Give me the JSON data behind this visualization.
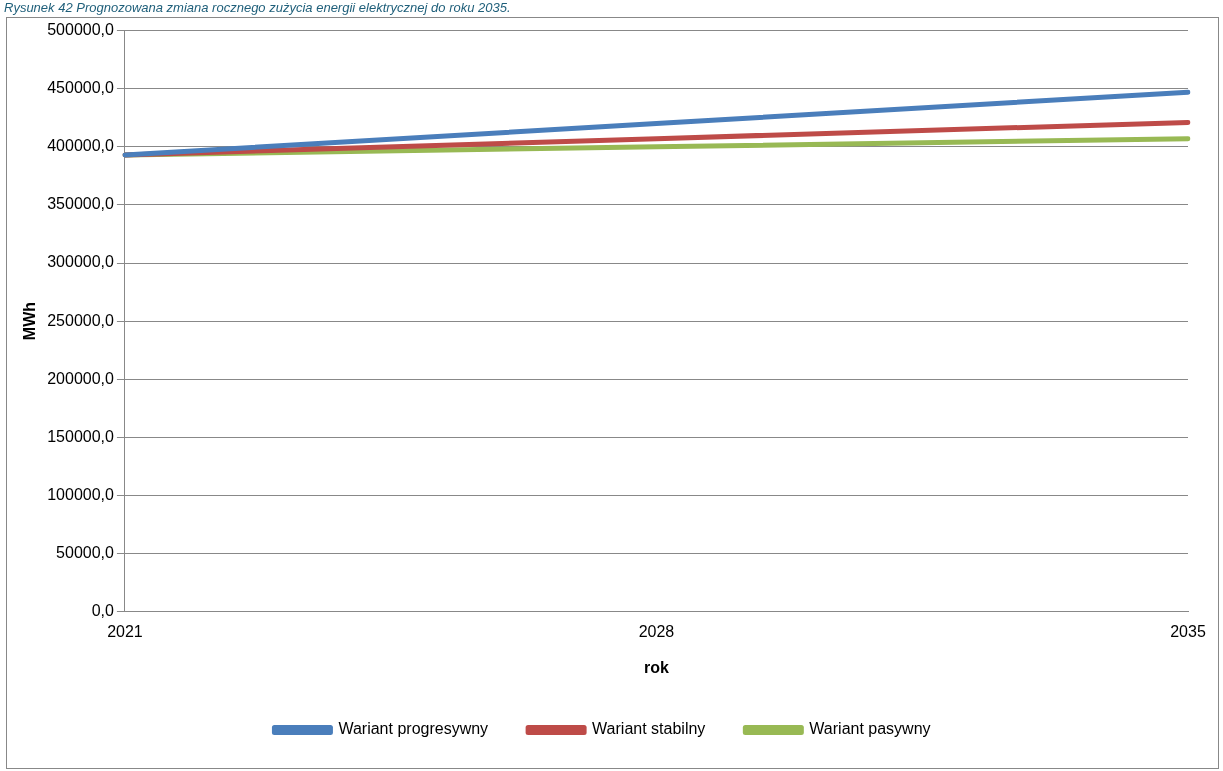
{
  "chart_data": {
    "type": "line",
    "title": "Rysunek 42 Prognozowana zmiana rocznego zużycia energii elektrycznej do roku 2035.",
    "xlabel": "rok",
    "ylabel": "MWh",
    "categories": [
      "2021",
      "2028",
      "2035"
    ],
    "series": [
      {
        "name": "Wariant progresywny",
        "color": "#4a7ebb",
        "values": [
          393000,
          420000,
          447000
        ]
      },
      {
        "name": "Wariant stabilny",
        "color": "#be4b48",
        "values": [
          393000,
          407000,
          421000
        ]
      },
      {
        "name": "Wariant pasywny",
        "color": "#98b954",
        "values": [
          393000,
          400000,
          407000
        ]
      }
    ],
    "ylim": [
      0,
      500000
    ],
    "yticks": [
      {
        "value": 0,
        "label": "0,0"
      },
      {
        "value": 50000,
        "label": "50000,0"
      },
      {
        "value": 100000,
        "label": "100000,0"
      },
      {
        "value": 150000,
        "label": "150000,0"
      },
      {
        "value": 200000,
        "label": "200000,0"
      },
      {
        "value": 250000,
        "label": "250000,0"
      },
      {
        "value": 300000,
        "label": "300000,0"
      },
      {
        "value": 350000,
        "label": "350000,0"
      },
      {
        "value": 400000,
        "label": "400000,0"
      },
      {
        "value": 450000,
        "label": "450000,0"
      },
      {
        "value": 500000,
        "label": "500000,0"
      }
    ],
    "grid": "y",
    "legend": "bottom",
    "marker": "none",
    "line_style": "solid"
  }
}
